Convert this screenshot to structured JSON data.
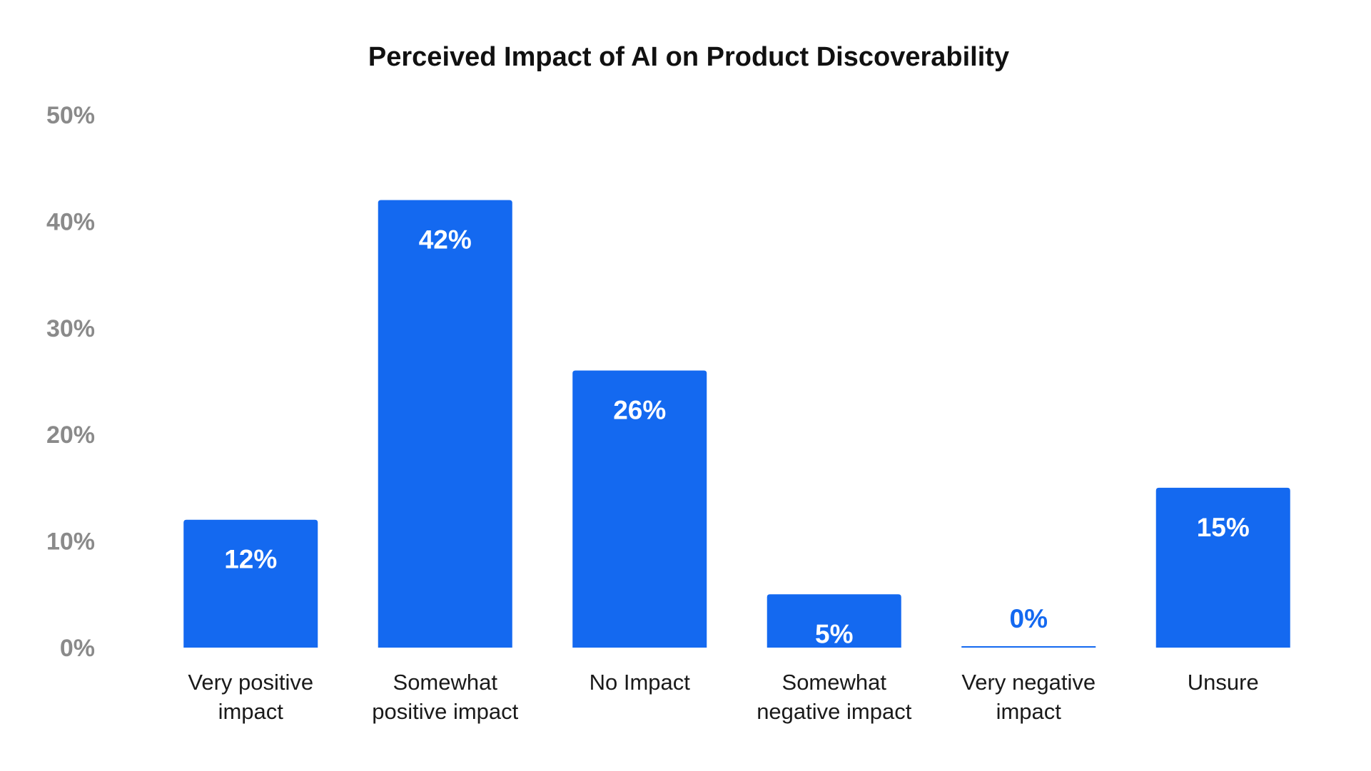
{
  "chart_data": {
    "type": "bar",
    "title": "Perceived Impact of AI on Product Discoverability",
    "categories": [
      [
        "Very positive",
        "impact"
      ],
      [
        "Somewhat",
        "positive impact"
      ],
      [
        "No Impact"
      ],
      [
        "Somewhat",
        "negative impact"
      ],
      [
        "Very negative",
        "impact"
      ],
      [
        "Unsure"
      ]
    ],
    "values": [
      12,
      42,
      26,
      5,
      0,
      15
    ],
    "value_labels": [
      "12%",
      "42%",
      "26%",
      "5%",
      "0%",
      "15%"
    ],
    "ylim": [
      0,
      50
    ],
    "yticks": [
      0,
      10,
      20,
      30,
      40,
      50
    ],
    "ytick_labels": [
      "0%",
      "10%",
      "20%",
      "30%",
      "40%",
      "50%"
    ],
    "xlabel": "",
    "ylabel": "",
    "grid": false,
    "legend": "none",
    "bar_color": "#1469f0",
    "label_color_inside": "#ffffff",
    "label_color_outside": "#1469f0"
  }
}
